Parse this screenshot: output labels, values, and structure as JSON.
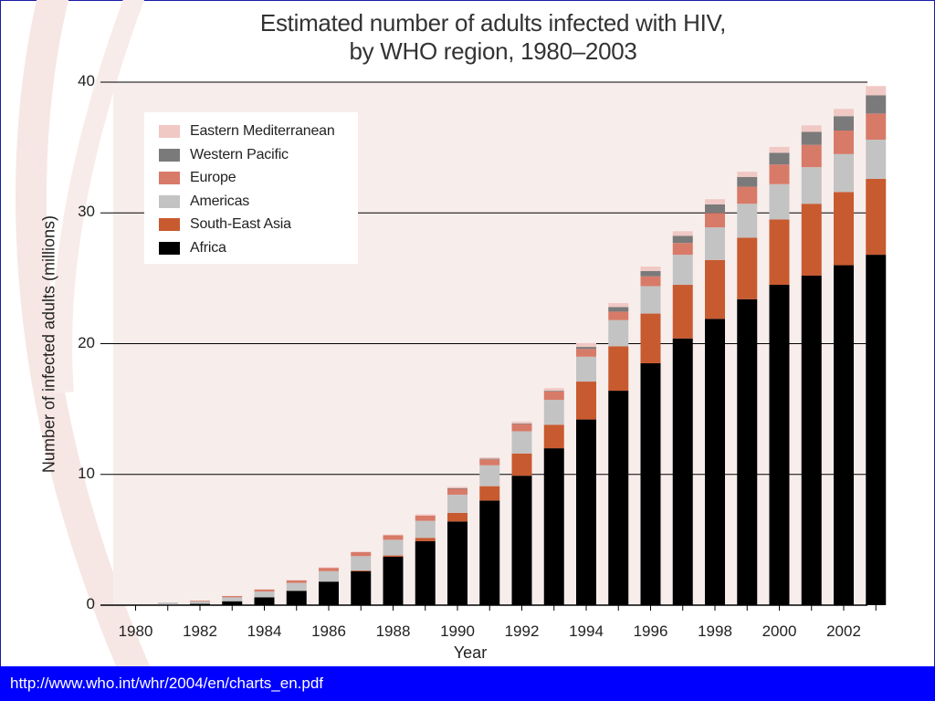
{
  "footer": {
    "url_text": "http://www.who.int/whr/2004/en/charts_en.pdf"
  },
  "colors": {
    "Africa": "#000000",
    "South-East Asia": "#c85a30",
    "Americas": "#c3c3c3",
    "Europe": "#d87a68",
    "Western Pacific": "#7a7a7a",
    "Eastern Mediterranean": "#f0c8c4",
    "plot_background": "#f7eeec",
    "footer_bar": "#0000ff"
  },
  "chart_data": {
    "type": "bar",
    "stacked": true,
    "title_line1": "Estimated number of adults infected with HIV,",
    "title_line2": "by WHO region, 1980–2003",
    "xlabel": "Year",
    "ylabel": "Number of infected adults (millions)",
    "ylim": [
      0,
      40
    ],
    "yticks": [
      0,
      10,
      20,
      30,
      40
    ],
    "xtick_labels": [
      "1980",
      "1982",
      "1984",
      "1986",
      "1988",
      "1990",
      "1992",
      "1994",
      "1996",
      "1998",
      "2000",
      "2002"
    ],
    "grid": "horizontal",
    "legend_position": "top-left",
    "categories": [
      "1980",
      "1981",
      "1982",
      "1983",
      "1984",
      "1985",
      "1986",
      "1987",
      "1988",
      "1989",
      "1990",
      "1991",
      "1992",
      "1993",
      "1994",
      "1995",
      "1996",
      "1997",
      "1998",
      "1999",
      "2000",
      "2001",
      "2002",
      "2003"
    ],
    "series": [
      {
        "name": "Africa",
        "values": [
          0,
          0.05,
          0.1,
          0.3,
          0.6,
          1.1,
          1.8,
          2.6,
          3.7,
          4.9,
          6.4,
          8.0,
          9.9,
          12.0,
          14.2,
          16.4,
          18.5,
          20.4,
          21.9,
          23.4,
          24.5,
          25.2,
          26.0,
          26.8
        ]
      },
      {
        "name": "South-East Asia",
        "values": [
          0,
          0,
          0,
          0,
          0,
          0,
          0,
          0.05,
          0.1,
          0.25,
          0.65,
          1.1,
          1.7,
          1.8,
          2.9,
          3.4,
          3.8,
          4.1,
          4.5,
          4.7,
          5.0,
          5.5,
          5.6,
          5.8
        ]
      },
      {
        "name": "Americas",
        "values": [
          0,
          0.15,
          0.2,
          0.3,
          0.45,
          0.6,
          0.8,
          1.1,
          1.2,
          1.3,
          1.4,
          1.6,
          1.7,
          1.9,
          1.9,
          2.0,
          2.1,
          2.3,
          2.5,
          2.6,
          2.7,
          2.8,
          2.9,
          3.0
        ]
      },
      {
        "name": "Europe",
        "values": [
          0,
          0,
          0.05,
          0.1,
          0.15,
          0.2,
          0.25,
          0.3,
          0.35,
          0.4,
          0.45,
          0.45,
          0.55,
          0.65,
          0.6,
          0.65,
          0.75,
          0.9,
          1.1,
          1.3,
          1.5,
          1.7,
          1.8,
          2.0
        ]
      },
      {
        "name": "Western Pacific",
        "values": [
          0,
          0,
          0,
          0,
          0,
          0,
          0,
          0,
          0,
          0,
          0.05,
          0.05,
          0.05,
          0.05,
          0.15,
          0.35,
          0.4,
          0.55,
          0.65,
          0.75,
          0.9,
          1.0,
          1.1,
          1.4
        ]
      },
      {
        "name": "Eastern Mediterranean",
        "values": [
          0,
          0,
          0,
          0,
          0,
          0,
          0.05,
          0.05,
          0.05,
          0.1,
          0.1,
          0.1,
          0.15,
          0.2,
          0.3,
          0.3,
          0.35,
          0.35,
          0.4,
          0.4,
          0.45,
          0.5,
          0.55,
          0.7
        ]
      }
    ],
    "legend_order": [
      "Eastern Mediterranean",
      "Western Pacific",
      "Europe",
      "Americas",
      "South-East Asia",
      "Africa"
    ]
  }
}
